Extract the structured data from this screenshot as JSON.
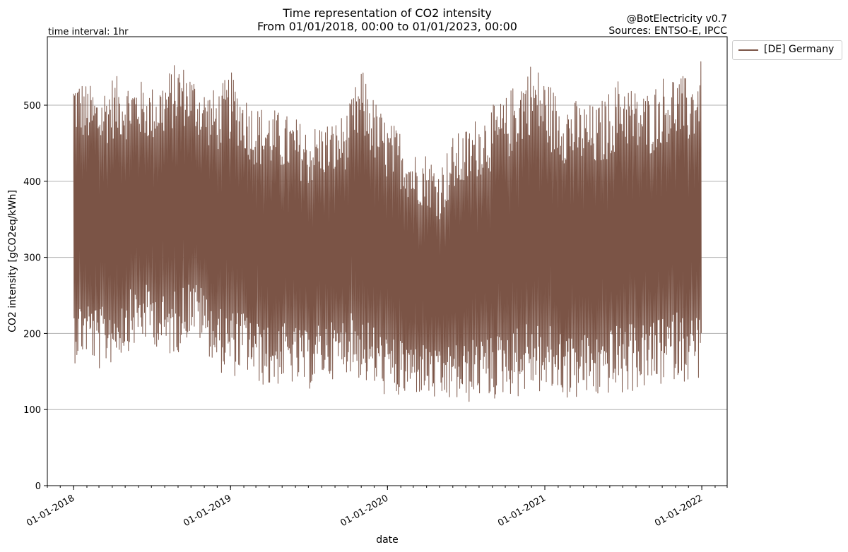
{
  "header": {
    "title_line1": "Time representation of CO2 intensity",
    "title_line2": "From 01/01/2018, 00:00 to 01/01/2023, 00:00",
    "credit": "@BotElectricity v0.7",
    "sources": "Sources: ENTSO-E, IPCC",
    "interval": "time interval: 1hr"
  },
  "colors": {
    "series": "#7b5446",
    "grid": "#b0b0b0"
  },
  "chart_data": {
    "type": "line",
    "title": "Time representation of CO2 intensity",
    "subtitle": "From 01/01/2018, 00:00 to 01/01/2023, 00:00",
    "xlabel": "date",
    "ylabel": "CO2 intensity [gCO2eq/kWh]",
    "ylim": [
      0,
      590
    ],
    "yticks": [
      0,
      100,
      200,
      300,
      400,
      500
    ],
    "xlim": [
      "2017-11-01",
      "2022-03-01"
    ],
    "xticks": [
      "2018-01-01",
      "2019-01-01",
      "2020-01-01",
      "2021-01-01",
      "2022-01-01"
    ],
    "xtick_labels": [
      "01-01-2018",
      "01-01-2019",
      "01-01-2020",
      "01-01-2021",
      "01-01-2022"
    ],
    "grid": "horizontal",
    "legend_position": "outside top-right",
    "series": [
      {
        "name": "[DE] Germany",
        "x": [
          "2018-01-01",
          "2018-02-01",
          "2018-03-01",
          "2018-04-01",
          "2018-05-01",
          "2018-06-01",
          "2018-07-01",
          "2018-08-01",
          "2018-09-01",
          "2018-10-01",
          "2018-11-01",
          "2018-12-01",
          "2019-01-01",
          "2019-02-01",
          "2019-03-01",
          "2019-04-01",
          "2019-05-01",
          "2019-06-01",
          "2019-07-01",
          "2019-08-01",
          "2019-09-01",
          "2019-10-01",
          "2019-11-01",
          "2019-12-01",
          "2020-01-01",
          "2020-02-01",
          "2020-03-01",
          "2020-04-01",
          "2020-05-01",
          "2020-06-01",
          "2020-07-01",
          "2020-08-01",
          "2020-09-01",
          "2020-10-01",
          "2020-11-01",
          "2020-12-01",
          "2021-01-01",
          "2021-02-01",
          "2021-03-01",
          "2021-04-01",
          "2021-05-01",
          "2021-06-01",
          "2021-07-01",
          "2021-08-01",
          "2021-09-01",
          "2021-10-01",
          "2021-11-01",
          "2021-12-01",
          "2022-01-01"
        ],
        "min": [
          160,
          170,
          150,
          160,
          175,
          185,
          190,
          165,
          175,
          200,
          180,
          150,
          140,
          150,
          135,
          125,
          135,
          130,
          125,
          140,
          140,
          150,
          135,
          125,
          115,
          110,
          120,
          115,
          105,
          110,
          105,
          115,
          110,
          120,
          115,
          125,
          115,
          120,
          110,
          115,
          112,
          120,
          115,
          125,
          125,
          130,
          140,
          135,
          140
        ],
        "max": [
          545,
          530,
          520,
          540,
          535,
          535,
          525,
          540,
          560,
          545,
          525,
          520,
          545,
          520,
          500,
          500,
          490,
          485,
          470,
          480,
          480,
          495,
          550,
          510,
          480,
          470,
          440,
          440,
          420,
          460,
          470,
          490,
          500,
          510,
          540,
          560,
          540,
          515,
          510,
          505,
          500,
          520,
          545,
          520,
          520,
          540,
          545,
          535,
          560
        ]
      }
    ]
  }
}
